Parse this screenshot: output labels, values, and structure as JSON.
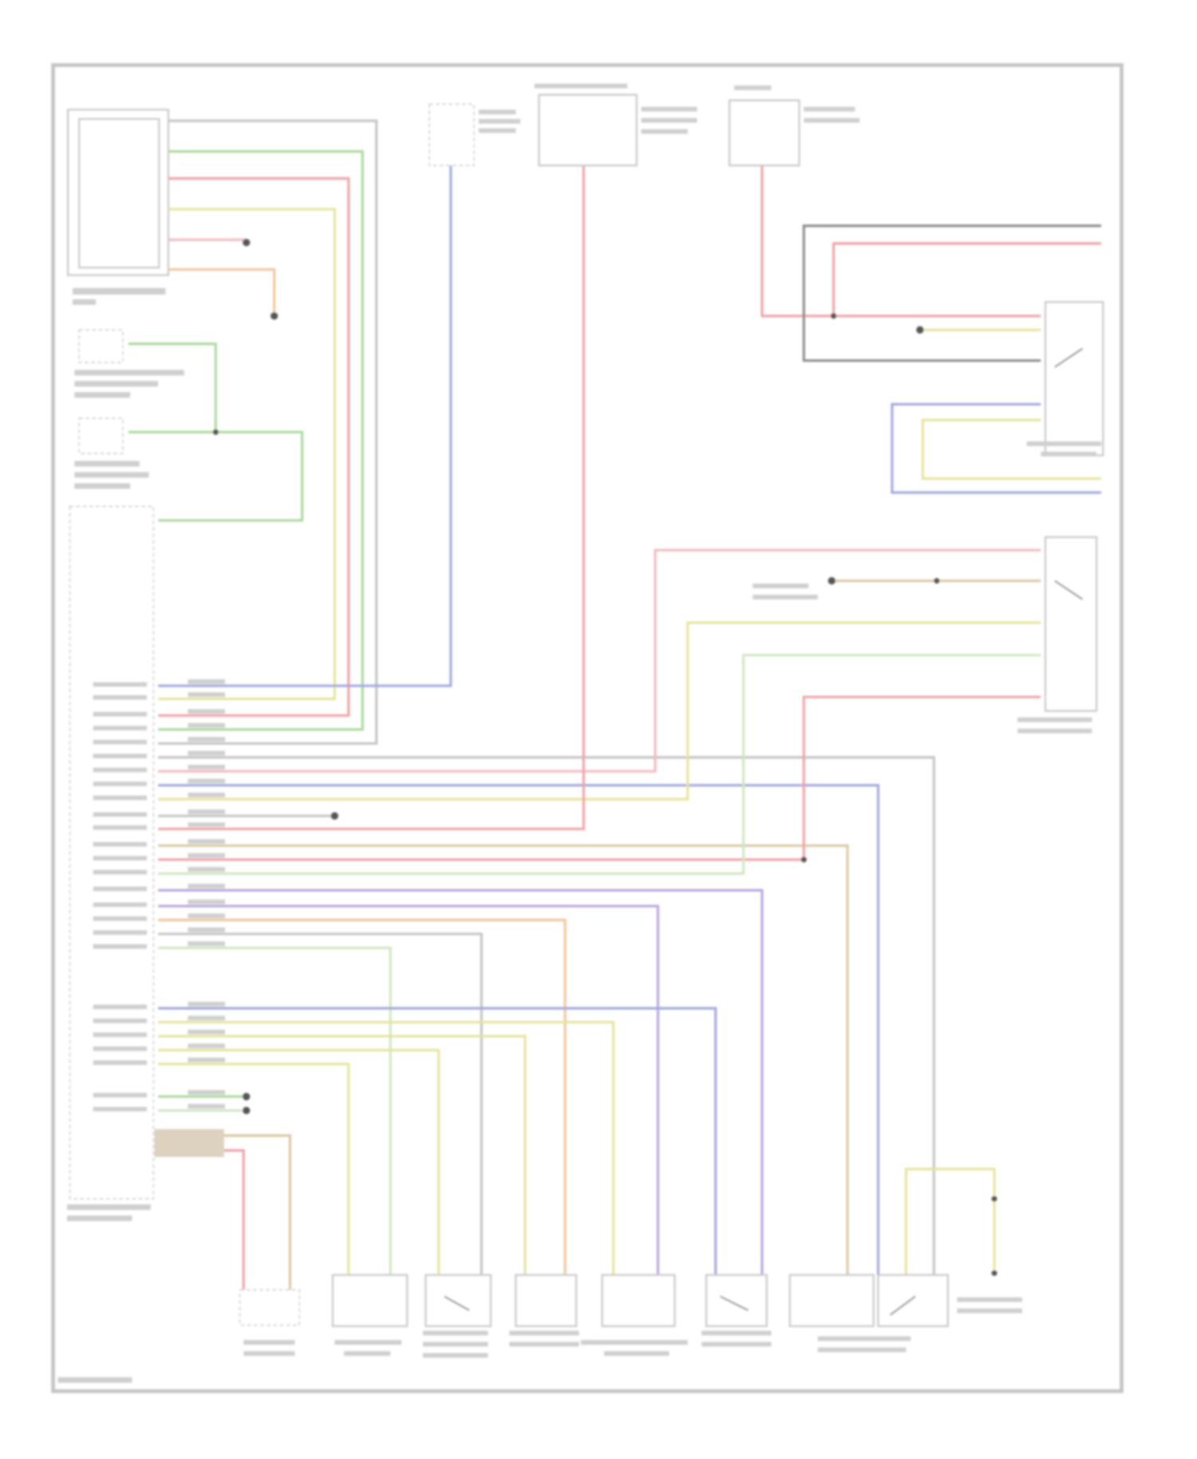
{
  "diagram": {
    "background": "#ffffff",
    "frame_color": "#c4c4c4",
    "wire_colors": {
      "gray": "#c3c3c3",
      "green": "#a9d89a",
      "red": "#f0a0a4",
      "yellow": "#e6e39a",
      "pink": "#f3b8bd",
      "orange": "#f2c59a",
      "tan": "#d9c7a0",
      "blue": "#9fa7dc",
      "purple": "#b8a4e0",
      "lightgreen": "#cfe6c0",
      "darkgray": "#8a8a8a"
    }
  }
}
